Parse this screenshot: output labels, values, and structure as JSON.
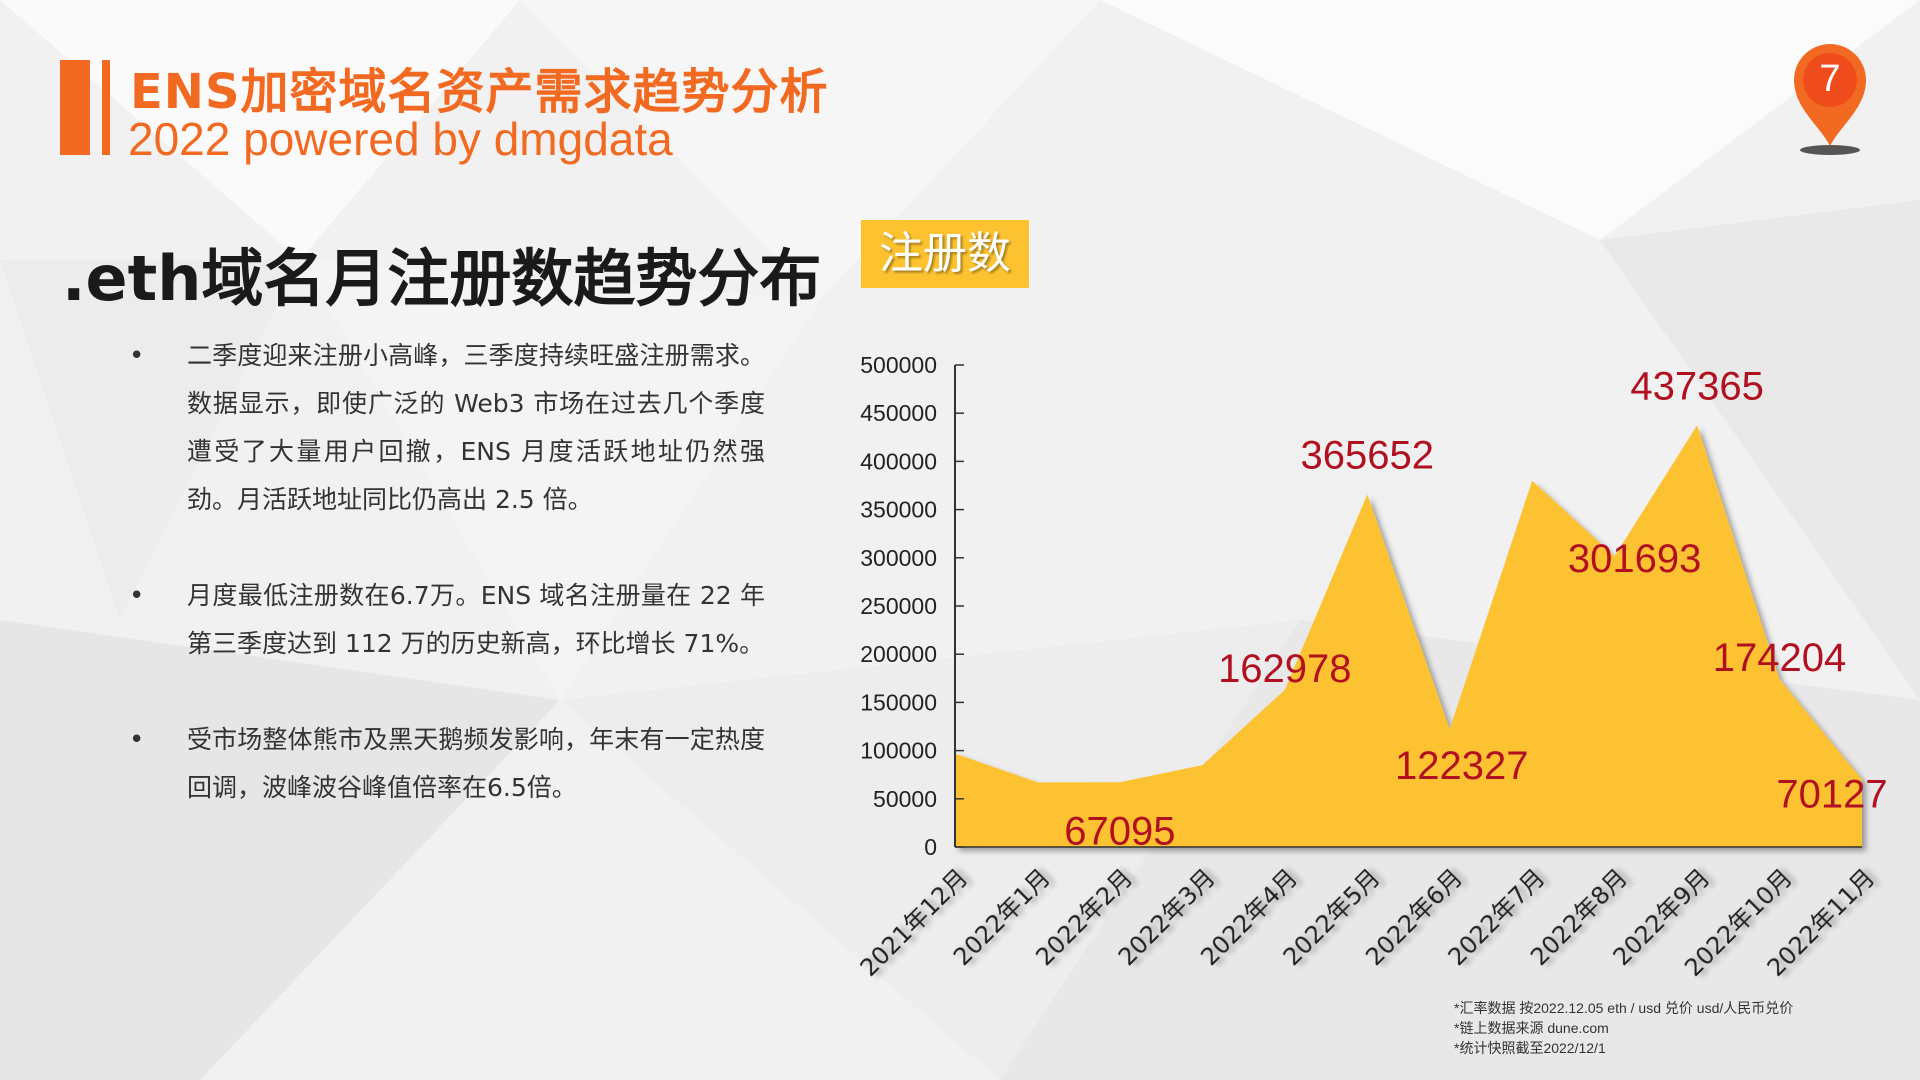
{
  "header": {
    "title": "ENS加密域名资产需求趋势分析",
    "subtitle": "2022 powered by dmgdata",
    "page_number": "7",
    "accent_color": "#f26a21",
    "pin_icon": "map-pin-icon"
  },
  "section": {
    "title": ".eth域名月注册数趋势分布",
    "legend_label": "注册数",
    "legend_color": "#fcc230"
  },
  "bullets": [
    {
      "text": "二季度迎来注册小高峰，三季度持续旺盛注册需求。数据显示，即使广泛的 Web3 市场在过去几个季度遭受了大量用户回撤，ENS 月度活跃地址仍然强劲。月活跃地址同比仍高出 2.5 倍。"
    },
    {
      "text": "月度最低注册数在6.7万。ENS 域名注册量在 22 年第三季度达到 112 万的历史新高，环比增长 71%。"
    },
    {
      "text": "受市场整体熊市及黑天鹅频发影响，年末有一定热度回调，波峰波谷峰值倍率在6.5倍。"
    }
  ],
  "chart_data": {
    "type": "area",
    "series_color": "#fcc230",
    "label_color": "#b01020",
    "categories": [
      "2021年12月",
      "2022年1月",
      "2022年2月",
      "2022年3月",
      "2022年4月",
      "2022年5月",
      "2022年6月",
      "2022年7月",
      "2022年8月",
      "2022年9月",
      "2022年10月",
      "2022年11月"
    ],
    "values": [
      97000,
      67000,
      67095,
      85000,
      162978,
      365652,
      122327,
      380000,
      301693,
      437365,
      174204,
      70127
    ],
    "data_labels": [
      "",
      "",
      "67095",
      "",
      "162978",
      "365652",
      "122327",
      "",
      "301693",
      "437365",
      "174204",
      "70127"
    ],
    "ylim": [
      0,
      500000
    ],
    "yticks": [
      "0",
      "50000",
      "100000",
      "150000",
      "200000",
      "250000",
      "300000",
      "350000",
      "400000",
      "450000",
      "500000"
    ],
    "grid": false,
    "legend": "top-left"
  },
  "footnotes": [
    "*汇率数据 按2022.12.05 eth / usd 兑价 usd/人民币兑价",
    "*链上数据来源 dune.com",
    "*统计快照截至2022/12/1"
  ]
}
